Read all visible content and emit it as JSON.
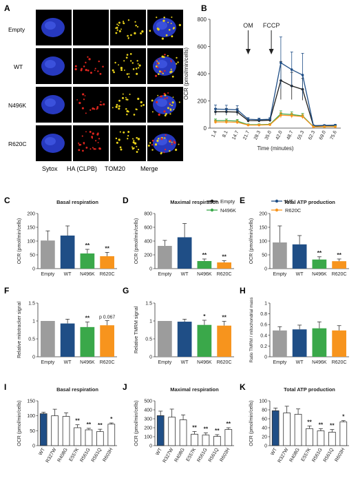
{
  "panel_letters": [
    "A",
    "B",
    "C",
    "D",
    "E",
    "F",
    "G",
    "H",
    "I",
    "J",
    "K"
  ],
  "micrographs": {
    "rows": [
      "Empty",
      "WT",
      "N496K",
      "R620C"
    ],
    "columns": [
      "Sytox",
      "HA (CLPB)",
      "TOM20",
      "Merge"
    ]
  },
  "colors": {
    "empty": "#9c9c9c",
    "wt": "#1f4e86",
    "n496k": "#3aa84a",
    "r620c": "#f7941d",
    "nucleus": "#2b3fd4",
    "ha": "#e0261f",
    "tom20": "#e9d21a"
  },
  "chart_data": [
    {
      "id": "B",
      "type": "line",
      "ylabel": "OCR (pmol/min/cells)",
      "xlabel": "Time (minutes)",
      "ylim": [
        0,
        800
      ],
      "yticks": [
        0,
        200,
        400,
        600,
        800
      ],
      "x": [
        "1.4",
        "8.1",
        "14.7",
        "21.7",
        "28.3",
        "35.0",
        "42.0",
        "48.7",
        "55.3",
        "62.3",
        "69.0",
        "75.6"
      ],
      "annotations": [
        "OM",
        "FCCP"
      ],
      "series": [
        {
          "name": "Empty",
          "color": "#1a1a1a",
          "values": [
            120,
            120,
            118,
            55,
            55,
            58,
            350,
            310,
            285,
            15,
            18,
            20
          ],
          "err": [
            25,
            25,
            25,
            12,
            12,
            12,
            140,
            100,
            80,
            5,
            5,
            5
          ]
        },
        {
          "name": "WT",
          "color": "#1f4e86",
          "values": [
            140,
            138,
            135,
            65,
            62,
            65,
            480,
            430,
            390,
            18,
            20,
            22
          ],
          "err": [
            30,
            30,
            30,
            12,
            12,
            12,
            190,
            130,
            160,
            5,
            5,
            5
          ]
        },
        {
          "name": "N496K",
          "color": "#3aa84a",
          "values": [
            55,
            55,
            52,
            25,
            25,
            28,
            105,
            100,
            90,
            10,
            10,
            12
          ],
          "err": [
            12,
            12,
            12,
            6,
            6,
            6,
            22,
            20,
            18,
            4,
            4,
            4
          ]
        },
        {
          "name": "R620C",
          "color": "#f7941d",
          "values": [
            45,
            45,
            43,
            22,
            22,
            25,
            95,
            92,
            85,
            9,
            10,
            10
          ],
          "err": [
            12,
            12,
            12,
            6,
            6,
            6,
            20,
            18,
            16,
            4,
            4,
            4
          ]
        }
      ],
      "legend": [
        "Empty",
        "WT",
        "N496K",
        "R620C"
      ]
    },
    {
      "id": "C",
      "type": "bar",
      "title": "Basal respiration",
      "ylabel": "OCR (pmol/min/cells)",
      "ylim": [
        0,
        200
      ],
      "yticks": [
        0,
        50,
        100,
        150,
        200
      ],
      "categories": [
        "Empty",
        "WT",
        "N496K",
        "R620C"
      ],
      "values": [
        102,
        120,
        55,
        45
      ],
      "err": [
        35,
        35,
        15,
        14
      ],
      "sig": [
        "",
        "",
        "**",
        "**"
      ]
    },
    {
      "id": "D",
      "type": "bar",
      "title": "Maximal respiration",
      "ylabel": "OCR (pmol/min/cells)",
      "ylim": [
        0,
        800
      ],
      "yticks": [
        0,
        200,
        400,
        600,
        800
      ],
      "categories": [
        "Empty",
        "WT",
        "N496K",
        "R620C"
      ],
      "values": [
        330,
        455,
        110,
        90
      ],
      "err": [
        80,
        200,
        30,
        25
      ],
      "sig": [
        "",
        "",
        "**",
        "**"
      ]
    },
    {
      "id": "E",
      "type": "bar",
      "title": "Total ATP production",
      "ylabel": "OCR (pmol/min/cells)",
      "ylim": [
        0,
        200
      ],
      "yticks": [
        0,
        50,
        100,
        150,
        200
      ],
      "categories": [
        "Empty",
        "WT",
        "N496K",
        "R620C"
      ],
      "values": [
        95,
        88,
        33,
        27
      ],
      "err": [
        60,
        32,
        10,
        8
      ],
      "sig": [
        "",
        "",
        "**",
        "**"
      ]
    },
    {
      "id": "F",
      "type": "bar",
      "title": "",
      "ylabel": "Relative mitotracker signal",
      "ylim": [
        0,
        1.5
      ],
      "yticks": [
        0,
        0.5,
        1.0,
        1.5
      ],
      "categories": [
        "Empty",
        "WT",
        "N496K",
        "R620C"
      ],
      "values": [
        1.0,
        0.93,
        0.83,
        0.88
      ],
      "err": [
        0,
        0.12,
        0.14,
        0.13
      ],
      "sig": [
        "",
        "",
        "**",
        "p 0.067"
      ]
    },
    {
      "id": "G",
      "type": "bar",
      "title": "",
      "ylabel": "Relative TMRM signal",
      "ylim": [
        0,
        1.5
      ],
      "yticks": [
        0,
        0.5,
        1.0,
        1.5
      ],
      "categories": [
        "Empty",
        "WT",
        "N496K",
        "R620C"
      ],
      "values": [
        1.0,
        0.98,
        0.89,
        0.87
      ],
      "err": [
        0,
        0.07,
        0.13,
        0.12
      ],
      "sig": [
        "",
        "",
        "*",
        "**"
      ]
    },
    {
      "id": "H",
      "type": "bar",
      "title": "",
      "ylabel": "Ratio TMRM / mitochondrial mass",
      "ylim": [
        0,
        1.0
      ],
      "yticks": [
        0,
        0.2,
        0.4,
        0.6,
        0.8,
        1.0
      ],
      "categories": [
        "Empty",
        "WT",
        "N496K",
        "R620C"
      ],
      "values": [
        0.49,
        0.51,
        0.53,
        0.49
      ],
      "err": [
        0.07,
        0.08,
        0.12,
        0.09
      ],
      "sig": [
        "",
        "",
        "",
        ""
      ]
    },
    {
      "id": "I",
      "type": "bar",
      "title": "Basal respiration",
      "ylabel": "OCR (pmol/min/cells)",
      "ylim": [
        0,
        150
      ],
      "yticks": [
        0,
        50,
        100,
        150
      ],
      "categories": [
        "WT",
        "R327W",
        "R408G",
        "E557K",
        "R561G",
        "R561Q",
        "R603H"
      ],
      "values": [
        107,
        100,
        98,
        60,
        53,
        47,
        72
      ],
      "err": [
        5,
        22,
        12,
        10,
        5,
        8,
        4
      ],
      "sig": [
        "",
        "",
        "",
        "**",
        "**",
        "**",
        "*"
      ]
    },
    {
      "id": "J",
      "type": "bar",
      "title": "Maximal respiration",
      "ylabel": "OCR (pmol/min/cells)",
      "ylim": [
        0,
        500
      ],
      "yticks": [
        0,
        100,
        200,
        300,
        400,
        500
      ],
      "categories": [
        "WT",
        "R327W",
        "R408G",
        "E557K",
        "R561G",
        "R561Q",
        "R603H"
      ],
      "values": [
        335,
        318,
        288,
        128,
        118,
        103,
        180
      ],
      "err": [
        50,
        90,
        55,
        30,
        25,
        20,
        20
      ],
      "sig": [
        "",
        "",
        "",
        "**",
        "**",
        "**",
        "**"
      ]
    },
    {
      "id": "K",
      "type": "bar",
      "title": "Total ATP production",
      "ylabel": "OCR (pmol/min/cells)",
      "ylim": [
        0,
        100
      ],
      "yticks": [
        0,
        20,
        40,
        60,
        80,
        100
      ],
      "categories": [
        "WT",
        "R327W",
        "R408G",
        "E557K",
        "R561G",
        "R561Q",
        "R603H"
      ],
      "values": [
        78,
        73,
        70,
        38,
        33,
        30,
        53
      ],
      "err": [
        6,
        15,
        12,
        6,
        5,
        6,
        3
      ],
      "sig": [
        "",
        "",
        "",
        "**",
        "**",
        "**",
        "*"
      ]
    }
  ]
}
